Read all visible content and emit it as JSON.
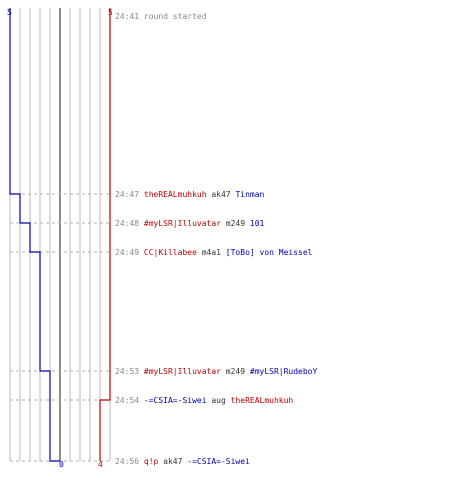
{
  "colors": {
    "red_team": "#c00000",
    "blue_team": "#0000b0",
    "time": "#888888",
    "weapon": "#333333",
    "dashed": "#b0b0b0",
    "grid": "#b8b8b8",
    "center_line": "#666666"
  },
  "blue_count": {
    "start": "5",
    "end": "0"
  },
  "red_count": {
    "start": "5",
    "end": "4"
  },
  "events": [
    {
      "time": "24:41",
      "note": "round started",
      "blue_alive": 5,
      "red_alive": 5
    },
    {
      "time": "24:47",
      "killer": "theREALmuhkuh",
      "killer_team": "red",
      "weapon": "ak47",
      "victim": "Tinman",
      "victim_team": "blue",
      "blue_alive": 4,
      "red_alive": 5
    },
    {
      "time": "24:48",
      "killer": "#myLSR|Illuvatar",
      "killer_team": "red",
      "weapon": "m249",
      "victim": "101",
      "victim_team": "blue",
      "blue_alive": 3,
      "red_alive": 5
    },
    {
      "time": "24:49",
      "killer": "CC|Killabee",
      "killer_team": "red",
      "weapon": "m4a1",
      "victim": "[ToBo] von Meissel",
      "victim_team": "blue",
      "blue_alive": 2,
      "red_alive": 5
    },
    {
      "time": "24:53",
      "killer": "#myLSR|Illuvatar",
      "killer_team": "red",
      "weapon": "m249",
      "victim": "#myLSR|RudeboY",
      "victim_team": "blue",
      "blue_alive": 1,
      "red_alive": 5
    },
    {
      "time": "24:54",
      "killer": "-=CSIA=-Siwei",
      "killer_team": "blue",
      "weapon": "aug",
      "victim": "theREALmuhkuh",
      "victim_team": "red",
      "blue_alive": 1,
      "red_alive": 4
    },
    {
      "time": "24:56",
      "killer": "q!p",
      "killer_team": "red",
      "weapon": "ak47",
      "victim": "-=CSIA=-Siwei",
      "victim_team": "blue",
      "blue_alive": 0,
      "red_alive": 4
    }
  ]
}
